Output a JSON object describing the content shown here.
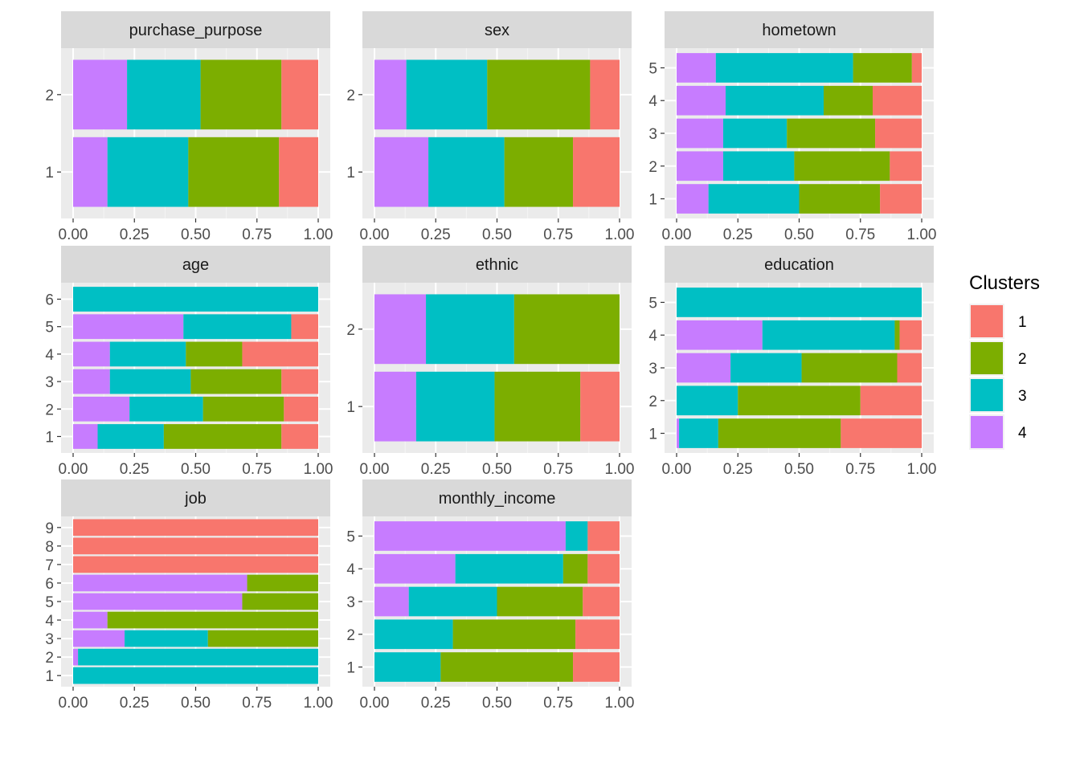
{
  "chart_data": {
    "type": "bar",
    "orientation": "horizontal",
    "stacking": "proportional",
    "xlim": [
      0,
      1
    ],
    "x_tick_labels": [
      "0.00",
      "0.25",
      "0.50",
      "0.75",
      "1.00"
    ],
    "grid": true,
    "legend": {
      "title": "Clusters",
      "position": "right",
      "entries": [
        {
          "label": "1",
          "color": "#F8766D"
        },
        {
          "label": "2",
          "color": "#7CAE00"
        },
        {
          "label": "3",
          "color": "#00BFC4"
        },
        {
          "label": "4",
          "color": "#C77CFF"
        }
      ]
    },
    "stack_order_left_to_right": [
      "4",
      "3",
      "2",
      "1"
    ],
    "panels": [
      {
        "title": "purchase_purpose",
        "categories": [
          "1",
          "2"
        ],
        "values": {
          "1": [
            0.14,
            0.33,
            0.37,
            0.16
          ],
          "2": [
            0.22,
            0.3,
            0.33,
            0.15
          ]
        }
      },
      {
        "title": "sex",
        "categories": [
          "1",
          "2"
        ],
        "values": {
          "1": [
            0.22,
            0.31,
            0.28,
            0.19
          ],
          "2": [
            0.13,
            0.33,
            0.42,
            0.12
          ]
        }
      },
      {
        "title": "hometown",
        "categories": [
          "1",
          "2",
          "3",
          "4",
          "5"
        ],
        "values": {
          "1": [
            0.13,
            0.37,
            0.33,
            0.17
          ],
          "2": [
            0.19,
            0.29,
            0.39,
            0.13
          ],
          "3": [
            0.19,
            0.26,
            0.36,
            0.19
          ],
          "4": [
            0.2,
            0.4,
            0.2,
            0.2
          ],
          "5": [
            0.16,
            0.56,
            0.24,
            0.04
          ]
        }
      },
      {
        "title": "age",
        "categories": [
          "1",
          "2",
          "3",
          "4",
          "5",
          "6"
        ],
        "values": {
          "1": [
            0.1,
            0.27,
            0.48,
            0.15
          ],
          "2": [
            0.23,
            0.3,
            0.33,
            0.14
          ],
          "3": [
            0.15,
            0.33,
            0.37,
            0.15
          ],
          "4": [
            0.15,
            0.31,
            0.23,
            0.31
          ],
          "5": [
            0.45,
            0.44,
            0.0,
            0.11
          ],
          "6": [
            0.0,
            1.0,
            0.0,
            0.0
          ]
        }
      },
      {
        "title": "ethnic",
        "categories": [
          "1",
          "2"
        ],
        "values": {
          "1": [
            0.17,
            0.32,
            0.35,
            0.16
          ],
          "2": [
            0.21,
            0.36,
            0.43,
            0.0
          ]
        }
      },
      {
        "title": "education",
        "categories": [
          "1",
          "2",
          "3",
          "4",
          "5"
        ],
        "values": {
          "1": [
            0.01,
            0.16,
            0.5,
            0.33
          ],
          "2": [
            0.0,
            0.25,
            0.5,
            0.25
          ],
          "3": [
            0.22,
            0.29,
            0.39,
            0.1
          ],
          "4": [
            0.35,
            0.54,
            0.02,
            0.09
          ],
          "5": [
            0.0,
            1.0,
            0.0,
            0.0
          ]
        }
      },
      {
        "title": "job",
        "categories": [
          "1",
          "2",
          "3",
          "4",
          "5",
          "6",
          "7",
          "8",
          "9"
        ],
        "values": {
          "1": [
            0.0,
            1.0,
            0.0,
            0.0
          ],
          "2": [
            0.02,
            0.98,
            0.0,
            0.0
          ],
          "3": [
            0.21,
            0.34,
            0.45,
            0.0
          ],
          "4": [
            0.14,
            0.0,
            0.86,
            0.0
          ],
          "5": [
            0.69,
            0.0,
            0.31,
            0.0
          ],
          "6": [
            0.71,
            0.0,
            0.29,
            0.0
          ],
          "7": [
            0.0,
            0.0,
            0.0,
            1.0
          ],
          "8": [
            0.0,
            0.0,
            0.0,
            1.0
          ],
          "9": [
            0.0,
            0.0,
            0.0,
            1.0
          ]
        }
      },
      {
        "title": "monthly_income",
        "categories": [
          "1",
          "2",
          "3",
          "4",
          "5"
        ],
        "values": {
          "1": [
            0.0,
            0.27,
            0.54,
            0.19
          ],
          "2": [
            0.0,
            0.32,
            0.5,
            0.18
          ],
          "3": [
            0.14,
            0.36,
            0.35,
            0.15
          ],
          "4": [
            0.33,
            0.44,
            0.1,
            0.13
          ],
          "5": [
            0.78,
            0.09,
            0.0,
            0.13
          ]
        }
      }
    ]
  }
}
